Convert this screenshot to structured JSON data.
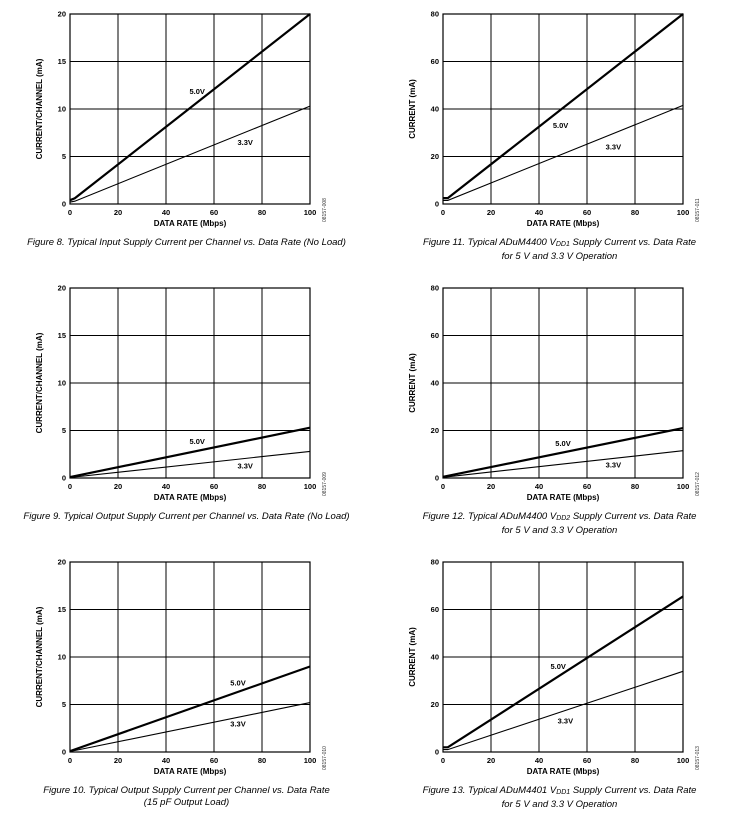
{
  "chart_data": [
    {
      "id": "fig8",
      "type": "line",
      "ylabel": "CURRENT/CHANNEL (mA)",
      "xlabel": "DATA RATE (Mbps)",
      "xlim": [
        0,
        100
      ],
      "ylim": [
        0,
        20
      ],
      "xticks": [
        0,
        20,
        40,
        60,
        80,
        100
      ],
      "yticks": [
        0,
        5,
        10,
        15,
        20
      ],
      "grid": true,
      "code": "08157-008",
      "caption": [
        "Figure 8. Typical Input Supply Current per Channel vs. Data Rate (No Load)"
      ],
      "series": [
        {
          "name": "5.0V",
          "x": [
            0,
            2,
            100
          ],
          "y": [
            0.4,
            0.6,
            20
          ],
          "label_at": [
            53,
            11.6
          ]
        },
        {
          "name": "3.3V",
          "x": [
            0,
            2,
            100
          ],
          "y": [
            0.2,
            0.3,
            10.3
          ],
          "label_at": [
            73,
            6.2
          ]
        }
      ]
    },
    {
      "id": "fig11",
      "type": "line",
      "ylabel": "CURRENT (mA)",
      "xlabel": "DATA RATE (Mbps)",
      "xlim": [
        0,
        100
      ],
      "ylim": [
        0,
        80
      ],
      "xticks": [
        0,
        20,
        40,
        60,
        80,
        100
      ],
      "yticks": [
        0,
        20,
        40,
        60,
        80
      ],
      "grid": true,
      "code": "08157-011",
      "caption": [
        "Figure 11. Typical ADuM4400 V{DD1} Supply Current vs. Data Rate",
        "for 5 V and 3.3 V Operation"
      ],
      "series": [
        {
          "name": "5.0V",
          "x": [
            0,
            2,
            100
          ],
          "y": [
            2.5,
            2.5,
            80
          ],
          "label_at": [
            49,
            32
          ]
        },
        {
          "name": "3.3V",
          "x": [
            0,
            2,
            100
          ],
          "y": [
            1.5,
            1.5,
            41.5
          ],
          "label_at": [
            71,
            23
          ]
        }
      ]
    },
    {
      "id": "fig9",
      "type": "line",
      "ylabel": "CURRENT/CHANNEL (mA)",
      "xlabel": "DATA RATE (Mbps)",
      "xlim": [
        0,
        100
      ],
      "ylim": [
        0,
        20
      ],
      "xticks": [
        0,
        20,
        40,
        60,
        80,
        100
      ],
      "yticks": [
        0,
        5,
        10,
        15,
        20
      ],
      "grid": true,
      "code": "08157-009",
      "caption": [
        "Figure 9. Typical Output Supply Current per Channel vs. Data Rate (No Load)"
      ],
      "series": [
        {
          "name": "5.0V",
          "x": [
            0,
            100
          ],
          "y": [
            0.1,
            5.3
          ],
          "label_at": [
            53,
            3.6
          ]
        },
        {
          "name": "3.3V",
          "x": [
            0,
            100
          ],
          "y": [
            0.05,
            2.8
          ],
          "label_at": [
            73,
            1.0
          ]
        }
      ]
    },
    {
      "id": "fig12",
      "type": "line",
      "ylabel": "CURRENT (mA)",
      "xlabel": "DATA RATE (Mbps)",
      "xlim": [
        0,
        100
      ],
      "ylim": [
        0,
        80
      ],
      "xticks": [
        0,
        20,
        40,
        60,
        80,
        100
      ],
      "yticks": [
        0,
        20,
        40,
        60,
        80
      ],
      "grid": true,
      "code": "08157-012",
      "caption": [
        "Figure 12. Typical ADuM4400 V{DD2} Supply Current vs. Data Rate",
        "for 5 V and 3.3 V Operation"
      ],
      "series": [
        {
          "name": "5.0V",
          "x": [
            0,
            100
          ],
          "y": [
            0.5,
            21
          ],
          "label_at": [
            50,
            13.5
          ]
        },
        {
          "name": "3.3V",
          "x": [
            0,
            100
          ],
          "y": [
            0.3,
            11.5
          ],
          "label_at": [
            71,
            4.5
          ]
        }
      ]
    },
    {
      "id": "fig10",
      "type": "line",
      "ylabel": "CURRENT/CHANNEL (mA)",
      "xlabel": "DATA RATE (Mbps)",
      "xlim": [
        0,
        100
      ],
      "ylim": [
        0,
        20
      ],
      "xticks": [
        0,
        20,
        40,
        60,
        80,
        100
      ],
      "yticks": [
        0,
        5,
        10,
        15,
        20
      ],
      "grid": true,
      "code": "08157-010",
      "caption": [
        "Figure 10. Typical Output Supply Current per Channel vs. Data Rate",
        "(15 pF Output Load)"
      ],
      "series": [
        {
          "name": "5.0V",
          "x": [
            0,
            100
          ],
          "y": [
            0.1,
            9.0
          ],
          "label_at": [
            70,
            7.0
          ]
        },
        {
          "name": "3.3V",
          "x": [
            0,
            100
          ],
          "y": [
            0.05,
            5.2
          ],
          "label_at": [
            70,
            2.7
          ]
        }
      ]
    },
    {
      "id": "fig13",
      "type": "line",
      "ylabel": "CURRENT (mA)",
      "xlabel": "DATA RATE (Mbps)",
      "xlim": [
        0,
        100
      ],
      "ylim": [
        0,
        80
      ],
      "xticks": [
        0,
        20,
        40,
        60,
        80,
        100
      ],
      "yticks": [
        0,
        20,
        40,
        60,
        80
      ],
      "grid": true,
      "code": "08157-013",
      "caption": [
        "Figure 13. Typical ADuM4401 V{DD1} Supply Current vs. Data Rate",
        "for 5 V and 3.3 V Operation"
      ],
      "series": [
        {
          "name": "5.0V",
          "x": [
            0,
            2,
            100
          ],
          "y": [
            2,
            2,
            65.5
          ],
          "label_at": [
            48,
            35
          ]
        },
        {
          "name": "3.3V",
          "x": [
            0,
            2,
            100
          ],
          "y": [
            1,
            1,
            34
          ],
          "label_at": [
            51,
            12
          ]
        }
      ]
    }
  ]
}
